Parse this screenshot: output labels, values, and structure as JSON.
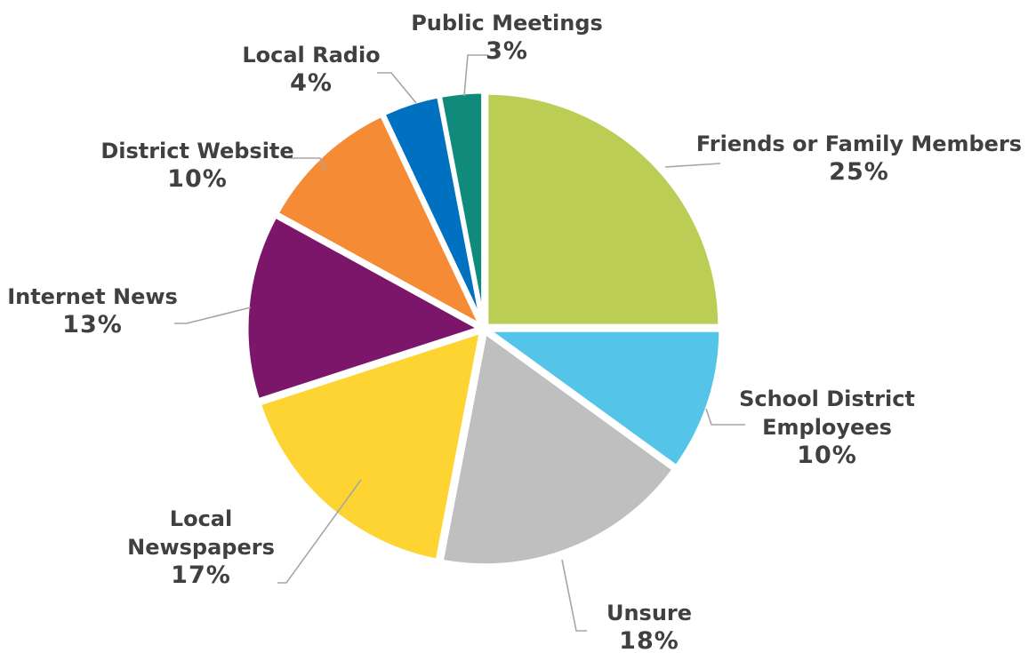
{
  "chart_data": {
    "type": "pie",
    "slices": [
      {
        "label": [
          "Friends or Family Members"
        ],
        "value": 25,
        "value_label": "25%",
        "color": "#bccd55"
      },
      {
        "label": [
          "School District",
          "Employees"
        ],
        "value": 10,
        "value_label": "10%",
        "color": "#54c5e8"
      },
      {
        "label": [
          "Unsure"
        ],
        "value": 18,
        "value_label": "18%",
        "color": "#bfbfbf"
      },
      {
        "label": [
          "Local",
          "Newspapers"
        ],
        "value": 17,
        "value_label": "17%",
        "color": "#fdd432"
      },
      {
        "label": [
          "Internet News"
        ],
        "value": 13,
        "value_label": "13%",
        "color": "#7b166b"
      },
      {
        "label": [
          "District Website"
        ],
        "value": 10,
        "value_label": "10%",
        "color": "#f68b35"
      },
      {
        "label": [
          "Local Radio"
        ],
        "value": 4,
        "value_label": "4%",
        "color": "#0070c0"
      },
      {
        "label": [
          "Public Meetings"
        ],
        "value": 3,
        "value_label": "3%",
        "color": "#108a7b"
      }
    ],
    "start_angle": "12 o'clock",
    "direction": "clockwise"
  }
}
